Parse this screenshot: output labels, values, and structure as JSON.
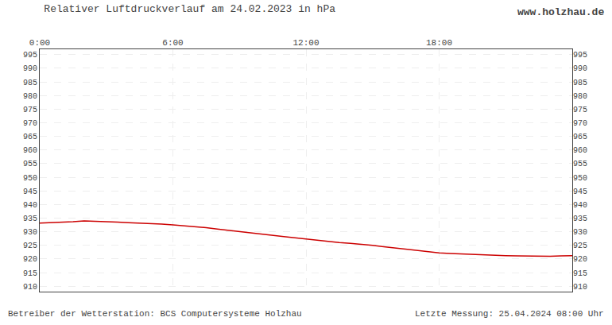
{
  "chart_data": {
    "type": "line",
    "title": "Relativer Luftdruckverlauf am 24.02.2023 in hPa",
    "annotations": [
      "www.holzhau.de",
      "Betreiber der Wetterstation: BCS Computersysteme Holzhau",
      "Letzte Messung: 25.04.2024 08:00 Uhr"
    ],
    "x": [
      0,
      30,
      60,
      90,
      120,
      150,
      180,
      210,
      240,
      270,
      300,
      330,
      360,
      390,
      420,
      450,
      480,
      510,
      540,
      570,
      600,
      630,
      660,
      690,
      720,
      750,
      780,
      810,
      840,
      870,
      900,
      930,
      960,
      990,
      1020,
      1050,
      1080,
      1110,
      1140,
      1170,
      1200,
      1230,
      1260,
      1290,
      1320,
      1350,
      1380,
      1410,
      1440
    ],
    "values": [
      933.2,
      933.3,
      933.5,
      933.7,
      934.0,
      933.9,
      933.7,
      933.5,
      933.3,
      933.2,
      933.0,
      932.8,
      932.5,
      932.2,
      931.8,
      931.5,
      931.0,
      930.5,
      930.0,
      929.5,
      929.0,
      928.7,
      928.2,
      927.8,
      927.3,
      926.9,
      926.5,
      926.0,
      925.7,
      925.4,
      925.0,
      924.5,
      924.0,
      923.5,
      923.0,
      922.5,
      922.2,
      922.0,
      921.8,
      921.6,
      921.4,
      921.3,
      921.2,
      921.1,
      921.0,
      921.0,
      921.0,
      921.1,
      921.2
    ],
    "color": "#cc0000",
    "xlim": [
      0,
      1440
    ],
    "xticks": [
      {
        "value": 0,
        "label": "0:00"
      },
      {
        "value": 360,
        "label": "6:00"
      },
      {
        "value": 720,
        "label": "12:00"
      },
      {
        "value": 1080,
        "label": "18:00"
      }
    ],
    "ylim": [
      908,
      997
    ],
    "yticks": [
      910,
      915,
      920,
      925,
      930,
      935,
      940,
      945,
      950,
      955,
      960,
      965,
      970,
      975,
      980,
      985,
      990,
      995
    ],
    "y2lim": [
      908,
      997
    ],
    "y2ticks": [
      910,
      915,
      920,
      925,
      930,
      935,
      940,
      945,
      950,
      955,
      960,
      965,
      970,
      975,
      980,
      985,
      990,
      995
    ],
    "grid": true
  }
}
